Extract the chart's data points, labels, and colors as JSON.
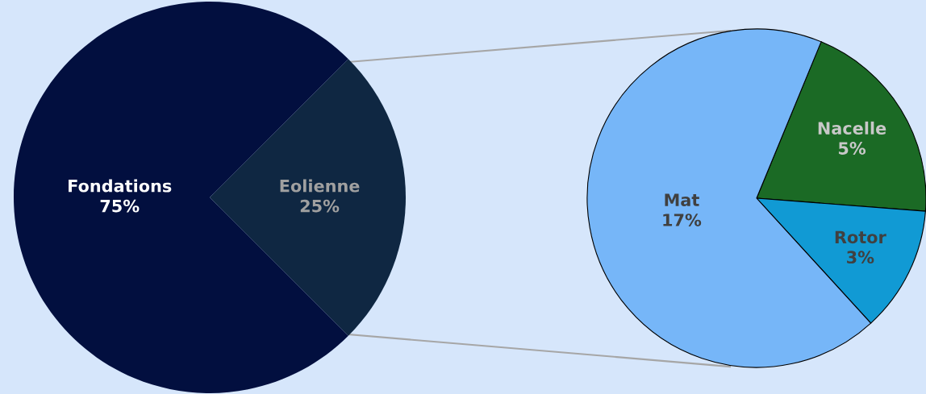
{
  "chart_data": [
    {
      "type": "pie",
      "categories": [
        "Eolienne",
        "Fondations"
      ],
      "values": [
        25,
        75
      ],
      "value_labels": [
        "25%",
        "75%"
      ],
      "colors": [
        "#0f2742",
        "#020f3f"
      ]
    },
    {
      "type": "pie",
      "categories": [
        "Nacelle",
        "Rotor",
        "Mat"
      ],
      "values": [
        5,
        3,
        17
      ],
      "value_labels": [
        "5%",
        "3%",
        "17%"
      ],
      "colors": [
        "#1b6a25",
        "#119ad4",
        "#76b6f8"
      ]
    }
  ]
}
